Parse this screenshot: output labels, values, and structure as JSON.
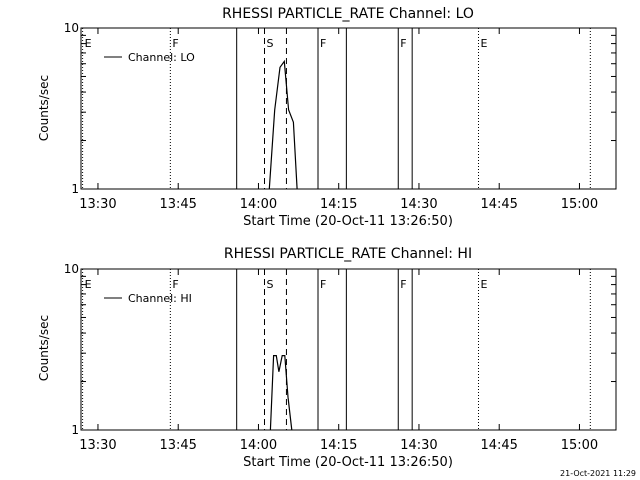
{
  "footer": {
    "timestamp": "21-Oct-2021 11:29"
  },
  "chart_data": [
    {
      "type": "line",
      "title": "RHESSI PARTICLE_RATE Channel: LO",
      "xlabel": "Start Time (20-Oct-11 13:26:50)",
      "ylabel": "Counts/sec",
      "x_unit": "minutes after 13:26:50",
      "xlim": [
        0,
        100
      ],
      "ylim": [
        1,
        10
      ],
      "y_scale": "log",
      "x_ticks": [
        {
          "label": "13:30",
          "at": 3.17
        },
        {
          "label": "13:45",
          "at": 18.17
        },
        {
          "label": "14:00",
          "at": 33.17
        },
        {
          "label": "14:15",
          "at": 48.17
        },
        {
          "label": "14:30",
          "at": 63.17
        },
        {
          "label": "14:45",
          "at": 78.17
        },
        {
          "label": "15:00",
          "at": 93.17
        }
      ],
      "y_ticks": [
        {
          "label": "10",
          "at": 10
        },
        {
          "label": "1",
          "at": 1
        }
      ],
      "legend": {
        "label": "Channel: LO",
        "position": "top-left"
      },
      "series": [
        {
          "name": "Channel: LO",
          "points": [
            [
              35.2,
              1
            ],
            [
              36.2,
              3.1
            ],
            [
              37.2,
              5.7
            ],
            [
              38.0,
              6.2
            ],
            [
              38.8,
              3.1
            ],
            [
              39.7,
              2.6
            ],
            [
              40.4,
              1
            ]
          ]
        }
      ],
      "markers": [
        {
          "label": "E",
          "at": 0.3,
          "style": "dotted"
        },
        {
          "label": "F",
          "at": 16.7,
          "style": "dotted"
        },
        {
          "label": "",
          "at": 29.1,
          "style": "solid"
        },
        {
          "label": "S",
          "at": 34.3,
          "style": "dashed"
        },
        {
          "label": "",
          "at": 38.4,
          "style": "dashed"
        },
        {
          "label": "F",
          "at": 44.3,
          "style": "solid"
        },
        {
          "label": "",
          "at": 49.6,
          "style": "solid"
        },
        {
          "label": "F",
          "at": 59.3,
          "style": "solid"
        },
        {
          "label": "",
          "at": 61.9,
          "style": "solid"
        },
        {
          "label": "E",
          "at": 74.3,
          "style": "dotted"
        },
        {
          "label": "",
          "at": 95.2,
          "style": "dotted"
        }
      ]
    },
    {
      "type": "line",
      "title": "RHESSI PARTICLE_RATE Channel: HI",
      "xlabel": "Start Time (20-Oct-11 13:26:50)",
      "ylabel": "Counts/sec",
      "x_unit": "minutes after 13:26:50",
      "xlim": [
        0,
        100
      ],
      "ylim": [
        1,
        10
      ],
      "y_scale": "log",
      "x_ticks": [
        {
          "label": "13:30",
          "at": 3.17
        },
        {
          "label": "13:45",
          "at": 18.17
        },
        {
          "label": "14:00",
          "at": 33.17
        },
        {
          "label": "14:15",
          "at": 48.17
        },
        {
          "label": "14:30",
          "at": 63.17
        },
        {
          "label": "14:45",
          "at": 78.17
        },
        {
          "label": "15:00",
          "at": 93.17
        }
      ],
      "y_ticks": [
        {
          "label": "10",
          "at": 10
        },
        {
          "label": "1",
          "at": 1
        }
      ],
      "legend": {
        "label": "Channel: HI",
        "position": "top-left"
      },
      "series": [
        {
          "name": "Channel: HI",
          "points": [
            [
              35.4,
              1
            ],
            [
              36.0,
              2.9
            ],
            [
              36.5,
              2.9
            ],
            [
              37.0,
              2.3
            ],
            [
              37.6,
              2.9
            ],
            [
              38.1,
              2.9
            ],
            [
              38.7,
              1.6
            ],
            [
              39.4,
              1
            ]
          ]
        }
      ],
      "markers": [
        {
          "label": "E",
          "at": 0.3,
          "style": "dotted"
        },
        {
          "label": "F",
          "at": 16.7,
          "style": "dotted"
        },
        {
          "label": "",
          "at": 29.1,
          "style": "solid"
        },
        {
          "label": "S",
          "at": 34.3,
          "style": "dashed"
        },
        {
          "label": "",
          "at": 38.4,
          "style": "dashed"
        },
        {
          "label": "F",
          "at": 44.3,
          "style": "solid"
        },
        {
          "label": "",
          "at": 49.6,
          "style": "solid"
        },
        {
          "label": "F",
          "at": 59.3,
          "style": "solid"
        },
        {
          "label": "",
          "at": 61.9,
          "style": "solid"
        },
        {
          "label": "E",
          "at": 74.3,
          "style": "dotted"
        },
        {
          "label": "",
          "at": 95.2,
          "style": "dotted"
        }
      ]
    }
  ]
}
